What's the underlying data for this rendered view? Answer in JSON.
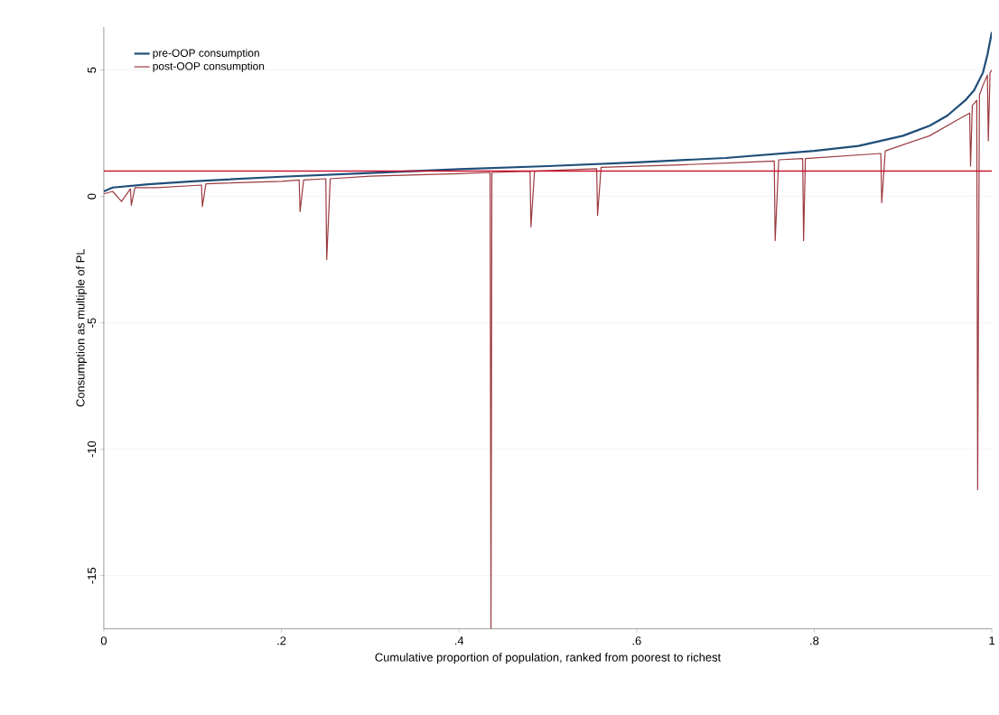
{
  "chart_data": {
    "type": "line",
    "xlabel": "Cumulative proportion of population, ranked from poorest to richest",
    "ylabel": "Consumption as multiple of PL",
    "xlim": [
      0,
      1
    ],
    "ylim": [
      -17.1,
      6.7
    ],
    "xticks": [
      0,
      {
        "value": 0.2,
        "label": ".2"
      },
      {
        "value": 0.4,
        "label": ".4"
      },
      {
        "value": 0.6,
        "label": ".6"
      },
      {
        "value": 0.8,
        "label": ".8"
      },
      1
    ],
    "yticks": [
      -15,
      -10,
      -5,
      0,
      5
    ],
    "grid": "y",
    "legend": "top left",
    "marker": "none",
    "line_style": "solid",
    "series": [
      {
        "name": "pre-OOP consumption",
        "color": "#1f4e79",
        "x": [
          0,
          0.01,
          0.05,
          0.1,
          0.2,
          0.3,
          0.4,
          0.5,
          0.6,
          0.7,
          0.8,
          0.85,
          0.9,
          0.93,
          0.95,
          0.97,
          0.98,
          0.99,
          0.995,
          1
        ],
        "values": [
          0.2,
          0.35,
          0.48,
          0.6,
          0.78,
          0.93,
          1.08,
          1.2,
          1.35,
          1.52,
          1.8,
          2.0,
          2.4,
          2.8,
          3.2,
          3.8,
          4.2,
          4.9,
          5.6,
          6.5
        ]
      },
      {
        "name": "post-OOP consumption",
        "color": "#9b3a3f",
        "x": [
          0,
          0.01,
          0.02,
          0.03,
          0.031,
          0.035,
          0.06,
          0.11,
          0.111,
          0.115,
          0.2,
          0.22,
          0.221,
          0.225,
          0.25,
          0.251,
          0.255,
          0.3,
          0.4,
          0.435,
          0.436,
          0.437,
          0.48,
          0.481,
          0.485,
          0.555,
          0.556,
          0.56,
          0.65,
          0.72,
          0.755,
          0.756,
          0.76,
          0.787,
          0.788,
          0.79,
          0.875,
          0.876,
          0.88,
          0.93,
          0.96,
          0.975,
          0.976,
          0.978,
          0.983,
          0.984,
          0.986,
          0.99,
          0.995,
          0.996,
          0.998,
          1
        ],
        "values": [
          0.1,
          0.2,
          -0.2,
          0.3,
          -0.35,
          0.35,
          0.35,
          0.45,
          -0.4,
          0.5,
          0.6,
          0.65,
          -0.6,
          0.65,
          0.7,
          -2.5,
          0.7,
          0.8,
          0.9,
          0.95,
          -17.1,
          0.95,
          1.0,
          -1.2,
          1.0,
          1.1,
          -0.75,
          1.15,
          1.25,
          1.35,
          1.4,
          -1.75,
          1.45,
          1.5,
          -1.75,
          1.5,
          1.7,
          -0.25,
          1.8,
          2.4,
          3.0,
          3.3,
          1.2,
          3.6,
          3.8,
          -11.6,
          4.0,
          4.4,
          4.8,
          2.2,
          4.9,
          5.0
        ]
      }
    ],
    "ref_lines": [
      {
        "axis": "y",
        "value": 1,
        "color": "#c8102e"
      }
    ]
  }
}
